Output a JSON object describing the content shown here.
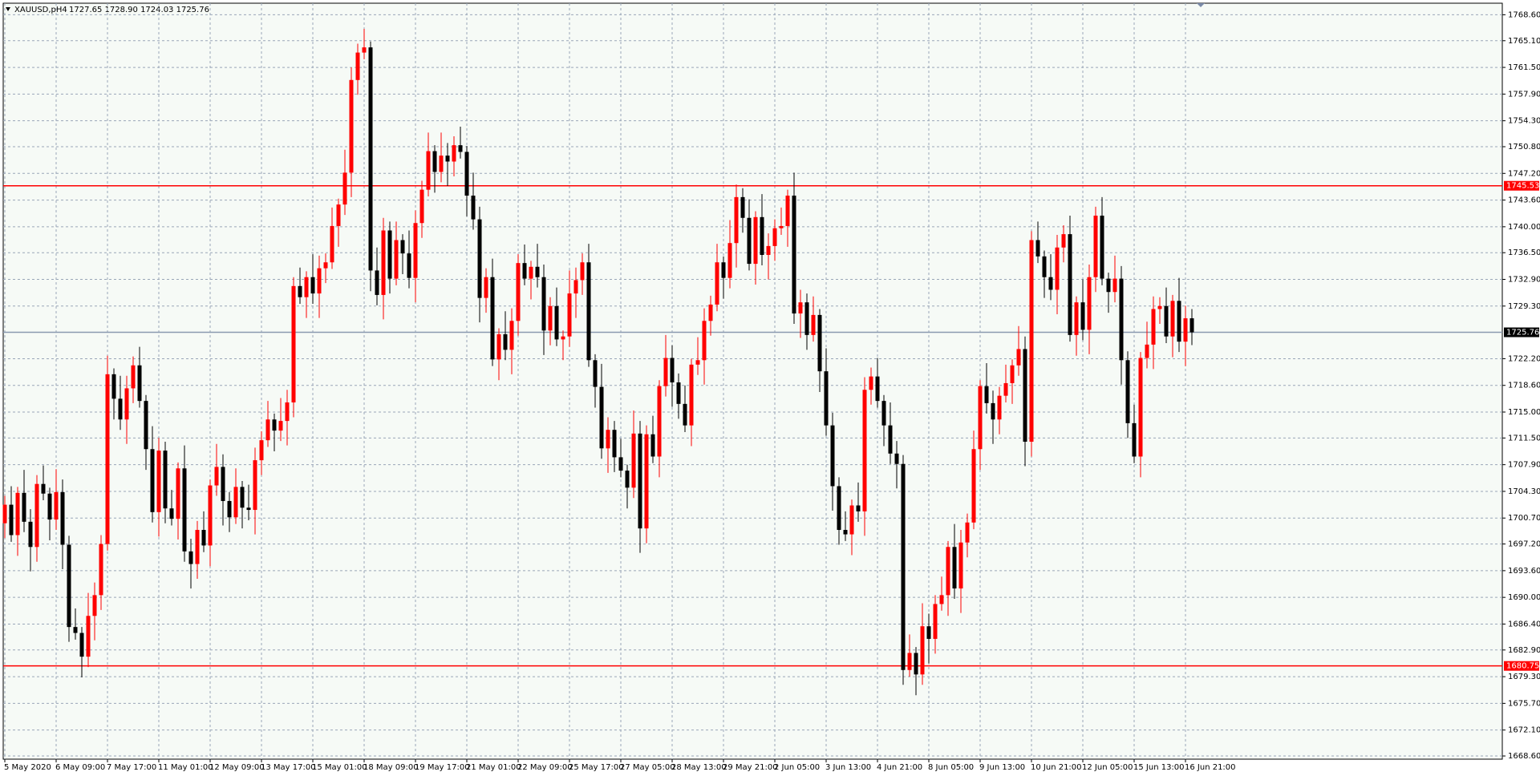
{
  "chart_data": {
    "type": "candlestick",
    "symbol": "XAUUSD,pH4",
    "header_quote": "1727.65 1728.90 1724.03 1725.76",
    "up_color": "#ff0000",
    "down_color": "#000000",
    "grid": true,
    "ylim": [
      1668.17,
      1770.16
    ],
    "yticks": [
      {
        "value": 1768.6,
        "label": "1768.60"
      },
      {
        "value": 1765.1,
        "label": "1765.10"
      },
      {
        "value": 1761.5,
        "label": "1761.50"
      },
      {
        "value": 1757.9,
        "label": "1757.90"
      },
      {
        "value": 1754.3,
        "label": "1754.30"
      },
      {
        "value": 1750.8,
        "label": "1750.80"
      },
      {
        "value": 1747.2,
        "label": "1747.20"
      },
      {
        "value": 1743.6,
        "label": "1743.60"
      },
      {
        "value": 1740.0,
        "label": "1740.00"
      },
      {
        "value": 1736.5,
        "label": "1736.50"
      },
      {
        "value": 1732.9,
        "label": "1732.90"
      },
      {
        "value": 1729.3,
        "label": "1729.30"
      },
      {
        "value": 1722.2,
        "label": "1722.20"
      },
      {
        "value": 1718.6,
        "label": "1718.60"
      },
      {
        "value": 1715.0,
        "label": "1715.00"
      },
      {
        "value": 1711.5,
        "label": "1711.50"
      },
      {
        "value": 1707.9,
        "label": "1707.90"
      },
      {
        "value": 1704.3,
        "label": "1704.30"
      },
      {
        "value": 1700.7,
        "label": "1700.70"
      },
      {
        "value": 1697.2,
        "label": "1697.20"
      },
      {
        "value": 1693.6,
        "label": "1693.60"
      },
      {
        "value": 1690.0,
        "label": "1690.00"
      },
      {
        "value": 1686.4,
        "label": "1686.40"
      },
      {
        "value": 1682.9,
        "label": "1682.90"
      },
      {
        "value": 1679.3,
        "label": "1679.30"
      },
      {
        "value": 1675.7,
        "label": "1675.70"
      },
      {
        "value": 1672.1,
        "label": "1672.10"
      },
      {
        "value": 1668.6,
        "label": "1668.60"
      }
    ],
    "hlines": [
      {
        "value": 1745.53,
        "color": "#ff0000",
        "label_color": "#ff0000"
      },
      {
        "value": 1680.75,
        "color": "#ff0000",
        "label_color": "#ff0000"
      },
      {
        "value": 1725.76,
        "color": "#8a9ab0",
        "label_color": "#000000"
      }
    ],
    "categories": [
      "5 May 2020",
      null,
      null,
      null,
      null,
      null,
      null,
      null,
      "6 May 09:00",
      null,
      null,
      null,
      null,
      null,
      null,
      null,
      "7 May 17:00",
      null,
      null,
      null,
      null,
      null,
      null,
      null,
      "11 May 01:00",
      null,
      null,
      null,
      null,
      null,
      null,
      null,
      "12 May 09:00",
      null,
      null,
      null,
      null,
      null,
      null,
      null,
      "13 May 17:00",
      null,
      null,
      null,
      null,
      null,
      null,
      null,
      "15 May 01:00",
      null,
      null,
      null,
      null,
      null,
      null,
      null,
      "18 May 09:00",
      null,
      null,
      null,
      null,
      null,
      null,
      null,
      "19 May 17:00",
      null,
      null,
      null,
      null,
      null,
      null,
      null,
      "21 May 01:00",
      null,
      null,
      null,
      null,
      null,
      null,
      null,
      "22 May 09:00",
      null,
      null,
      null,
      null,
      null,
      null,
      null,
      "25 May 17:00",
      null,
      null,
      null,
      null,
      null,
      null,
      null,
      "27 May 05:00",
      null,
      null,
      null,
      null,
      null,
      null,
      null,
      "28 May 13:00",
      null,
      null,
      null,
      null,
      null,
      null,
      null,
      "29 May 21:00",
      null,
      null,
      null,
      null,
      null,
      null,
      null,
      "2 Jun 05:00",
      null,
      null,
      null,
      null,
      null,
      null,
      null,
      "3 Jun 13:00",
      null,
      null,
      null,
      null,
      null,
      null,
      null,
      "4 Jun 21:00",
      null,
      null,
      null,
      null,
      null,
      null,
      null,
      "8 Jun 05:00",
      null,
      null,
      null,
      null,
      null,
      null,
      null,
      "9 Jun 13:00",
      null,
      null,
      null,
      null,
      null,
      null,
      null,
      "10 Jun 21:00",
      null,
      null,
      null,
      null,
      null,
      null,
      null,
      "12 Jun 05:00",
      null,
      null,
      null,
      null,
      null,
      null,
      null,
      "15 Jun 13:00",
      null,
      null,
      null,
      null,
      null,
      null,
      null,
      "16 Jun 21:00",
      null
    ],
    "open": [
      1700.0,
      1702.5,
      1698.4,
      1704.1,
      1700.2,
      1696.8,
      1705.3,
      1704.0,
      1700.5,
      1704.2,
      1697.1,
      1686.0,
      1685.2,
      1682.0,
      1687.5,
      1690.3,
      1697.2,
      1720.1,
      1716.8,
      1714.0,
      1718.2,
      1721.3,
      1716.5,
      1710.0,
      1701.5,
      1709.8,
      1702.0,
      1700.6,
      1707.4,
      1696.2,
      1694.5,
      1699.1,
      1697.0,
      1705.1,
      1707.6,
      1703.0,
      1700.8,
      1704.9,
      1702.1,
      1701.8,
      1708.5,
      1711.2,
      1714.0,
      1712.5,
      1713.8,
      1716.3,
      1732.0,
      1730.5,
      1733.2,
      1731.0,
      1734.4,
      1735.2,
      1740.1,
      1743.0,
      1747.3,
      1759.8,
      1763.5,
      1764.2,
      1734.1,
      1730.8,
      1739.5,
      1733.0,
      1738.2,
      1736.4,
      1733.1,
      1740.5,
      1745.0,
      1750.2,
      1747.4,
      1749.6,
      1748.8,
      1751.0,
      1750.1,
      1744.2,
      1741.0,
      1730.4,
      1733.2,
      1722.1,
      1725.5,
      1723.4,
      1727.3,
      1735.1,
      1733.0,
      1734.6,
      1733.2,
      1726.0,
      1729.3,
      1724.8,
      1725.2,
      1731.0,
      1732.8,
      1735.2,
      1722.0,
      1718.4,
      1710.1,
      1712.6,
      1708.9,
      1707.1,
      1704.8,
      1712.1,
      1699.3,
      1712.0,
      1709.0,
      1718.5,
      1722.3,
      1719.0,
      1716.1,
      1713.2,
      1721.4,
      1722.0,
      1727.3,
      1729.5,
      1735.2,
      1733.1,
      1737.8,
      1744.0,
      1741.2,
      1735.0,
      1741.3,
      1736.2,
      1737.4,
      1739.8,
      1740.1,
      1744.2,
      1728.3,
      1729.8,
      1725.4,
      1728.1,
      1720.5,
      1713.2,
      1705.0,
      1699.1,
      1698.5,
      1702.4,
      1701.6,
      1718.0,
      1719.8,
      1716.5,
      1713.2,
      1709.4,
      1708.0,
      1680.2,
      1682.5,
      1679.6,
      1686.1,
      1684.4,
      1689.1,
      1690.3,
      1696.8,
      1691.2,
      1697.4,
      1700.1,
      1710.0,
      1718.5,
      1716.2,
      1714.0,
      1717.2,
      1718.9,
      1721.3,
      1723.5,
      1711.0,
      1738.2,
      1736.0,
      1733.2,
      1731.5,
      1737.2,
      1739.0,
      1725.4,
      1729.8,
      1726.1,
      1733.2,
      1741.5,
      1733.0,
      1731.2,
      1733.0,
      1722.0,
      1713.5,
      1709.0,
      1722.3,
      1724.1,
      1728.9,
      1729.3,
      1725.2,
      1730.0,
      1724.5,
      1727.65
    ],
    "high": [
      1703.7,
      1705.0,
      1704.9,
      1707.2,
      1701.9,
      1706.5,
      1707.8,
      1704.8,
      1707.3,
      1705.9,
      1698.3,
      1688.5,
      1686.0,
      1690.6,
      1692.0,
      1698.4,
      1722.6,
      1720.9,
      1719.9,
      1719.9,
      1722.5,
      1723.8,
      1717.3,
      1713.1,
      1711.5,
      1711.0,
      1704.5,
      1708.2,
      1710.5,
      1697.9,
      1700.3,
      1701.6,
      1705.9,
      1710.7,
      1709.3,
      1704.2,
      1707.4,
      1705.7,
      1705.2,
      1710.2,
      1712.4,
      1716.5,
      1714.8,
      1716.9,
      1718.0,
      1733.2,
      1734.5,
      1734.0,
      1736.3,
      1736.1,
      1736.4,
      1742.6,
      1743.8,
      1750.4,
      1761.5,
      1764.7,
      1766.7,
      1765.0,
      1737.2,
      1741.2,
      1740.7,
      1740.7,
      1739.0,
      1739.5,
      1742.2,
      1746.2,
      1752.7,
      1751.0,
      1752.7,
      1751.3,
      1752.2,
      1753.5,
      1750.9,
      1747.3,
      1742.7,
      1734.4,
      1735.7,
      1726.3,
      1728.6,
      1729.0,
      1736.3,
      1737.6,
      1735.4,
      1737.7,
      1734.9,
      1730.5,
      1731.8,
      1726.0,
      1734.1,
      1734.5,
      1736.4,
      1737.7,
      1722.8,
      1721.5,
      1714.3,
      1713.8,
      1711.4,
      1707.9,
      1715.2,
      1713.8,
      1713.2,
      1714.5,
      1719.3,
      1725.4,
      1724.0,
      1720.2,
      1718.6,
      1722.2,
      1725.1,
      1729.0,
      1730.7,
      1737.7,
      1736.0,
      1740.9,
      1745.7,
      1745.2,
      1743.7,
      1742.1,
      1744.4,
      1739.1,
      1741.0,
      1742.6,
      1745.0,
      1747.3,
      1731.5,
      1731.0,
      1730.6,
      1728.9,
      1723.6,
      1714.9,
      1706.2,
      1701.6,
      1703.2,
      1705.5,
      1719.7,
      1721.0,
      1722.3,
      1717.3,
      1716.3,
      1711.1,
      1709.2,
      1685.0,
      1683.3,
      1689.2,
      1687.8,
      1690.3,
      1692.8,
      1697.6,
      1699.9,
      1699.1,
      1701.3,
      1712.5,
      1719.3,
      1721.6,
      1717.9,
      1718.4,
      1721.4,
      1722.1,
      1726.6,
      1725.2,
      1739.4,
      1740.7,
      1736.8,
      1736.3,
      1738.9,
      1740.2,
      1741.5,
      1730.6,
      1732.9,
      1734.9,
      1742.7,
      1744.0,
      1733.8,
      1736.1,
      1734.7,
      1723.2,
      1716.0,
      1723.1,
      1727.2,
      1730.6,
      1730.5,
      1731.8,
      1730.8,
      1733.1,
      1729.35,
      1728.9
    ],
    "low": [
      1698.0,
      1697.5,
      1695.6,
      1698.8,
      1693.5,
      1694.8,
      1703.1,
      1697.7,
      1699.1,
      1693.8,
      1684.0,
      1684.3,
      1679.2,
      1680.6,
      1684.2,
      1688.3,
      1696.3,
      1714.0,
      1712.6,
      1710.7,
      1716.2,
      1715.6,
      1707.2,
      1700.1,
      1698.2,
      1700.0,
      1699.7,
      1697.8,
      1694.8,
      1691.2,
      1692.5,
      1696.1,
      1694.2,
      1703.7,
      1699.7,
      1698.8,
      1699.9,
      1699.3,
      1700.4,
      1698.5,
      1706.5,
      1710.3,
      1709.7,
      1711.1,
      1710.5,
      1714.3,
      1729.6,
      1727.7,
      1729.6,
      1727.7,
      1732.4,
      1734.3,
      1737.3,
      1741.6,
      1744.0,
      1757.8,
      1762.6,
      1731.3,
      1729.4,
      1727.5,
      1731.0,
      1732.1,
      1733.6,
      1731.7,
      1729.8,
      1738.5,
      1744.1,
      1744.6,
      1746.0,
      1745.5,
      1746.8,
      1749.2,
      1741.4,
      1739.6,
      1727.1,
      1728.4,
      1721.2,
      1719.3,
      1722.0,
      1720.1,
      1725.3,
      1732.1,
      1730.2,
      1731.8,
      1722.7,
      1724.0,
      1723.9,
      1722.0,
      1723.8,
      1727.7,
      1730.8,
      1721.1,
      1715.6,
      1708.7,
      1706.8,
      1706.9,
      1706.2,
      1702.0,
      1703.4,
      1696.0,
      1697.3,
      1708.1,
      1706.2,
      1717.1,
      1715.7,
      1714.1,
      1712.3,
      1710.4,
      1720.0,
      1718.7,
      1725.3,
      1728.6,
      1730.3,
      1731.7,
      1734.5,
      1739.2,
      1734.1,
      1732.2,
      1734.8,
      1732.9,
      1735.4,
      1738.9,
      1737.3,
      1726.9,
      1725.0,
      1723.4,
      1724.5,
      1717.7,
      1711.8,
      1701.7,
      1697.1,
      1697.6,
      1695.7,
      1700.2,
      1698.3,
      1716.0,
      1715.6,
      1710.4,
      1708.0,
      1704.7,
      1678.2,
      1679.3,
      1676.8,
      1678.2,
      1681.1,
      1682.4,
      1688.2,
      1687.5,
      1689.8,
      1687.9,
      1695.4,
      1699.2,
      1707.2,
      1714.8,
      1710.7,
      1712.0,
      1716.3,
      1716.1,
      1719.9,
      1707.7,
      1709.0,
      1735.1,
      1730.4,
      1730.1,
      1728.2,
      1735.2,
      1724.5,
      1722.6,
      1724.7,
      1722.8,
      1731.2,
      1732.1,
      1728.4,
      1729.8,
      1718.7,
      1711.5,
      1708.1,
      1706.2,
      1720.9,
      1720.8,
      1726.9,
      1724.3,
      1722.4,
      1723.1,
      1721.2,
      1724.03
    ],
    "close": [
      1702.5,
      1698.4,
      1704.1,
      1700.2,
      1696.8,
      1705.3,
      1704.0,
      1700.5,
      1704.2,
      1697.1,
      1686.0,
      1685.2,
      1682.0,
      1687.5,
      1690.3,
      1697.2,
      1720.1,
      1716.8,
      1714.0,
      1718.2,
      1721.3,
      1716.5,
      1710.0,
      1701.5,
      1709.8,
      1702.0,
      1700.6,
      1707.4,
      1696.2,
      1694.5,
      1699.1,
      1697.0,
      1705.1,
      1707.6,
      1703.0,
      1700.8,
      1704.9,
      1702.1,
      1701.8,
      1708.5,
      1711.2,
      1714.0,
      1712.5,
      1713.8,
      1716.3,
      1732.0,
      1730.5,
      1733.2,
      1731.0,
      1734.4,
      1735.2,
      1740.1,
      1743.0,
      1747.3,
      1759.8,
      1763.5,
      1764.2,
      1734.1,
      1730.8,
      1739.5,
      1733.0,
      1738.2,
      1736.4,
      1733.1,
      1740.5,
      1745.0,
      1750.2,
      1747.4,
      1749.6,
      1748.8,
      1751.0,
      1750.1,
      1744.2,
      1741.0,
      1730.4,
      1733.2,
      1722.1,
      1725.5,
      1723.4,
      1727.3,
      1735.1,
      1733.0,
      1734.6,
      1733.2,
      1726.0,
      1729.3,
      1724.8,
      1725.2,
      1731.0,
      1732.8,
      1735.2,
      1722.0,
      1718.4,
      1710.1,
      1712.6,
      1708.9,
      1707.1,
      1704.8,
      1712.1,
      1699.3,
      1712.0,
      1709.0,
      1718.5,
      1722.3,
      1719.0,
      1716.1,
      1713.2,
      1721.4,
      1722.0,
      1727.3,
      1729.5,
      1735.2,
      1733.1,
      1737.8,
      1744.0,
      1741.2,
      1735.0,
      1741.3,
      1736.2,
      1737.4,
      1739.8,
      1740.1,
      1744.2,
      1728.3,
      1729.8,
      1725.4,
      1728.1,
      1720.5,
      1713.2,
      1705.0,
      1699.1,
      1698.5,
      1702.4,
      1701.6,
      1718.0,
      1719.8,
      1716.5,
      1713.2,
      1709.4,
      1708.0,
      1680.2,
      1682.5,
      1679.6,
      1686.1,
      1684.4,
      1689.1,
      1690.3,
      1696.8,
      1691.2,
      1697.4,
      1700.1,
      1710.0,
      1718.5,
      1716.2,
      1714.0,
      1717.2,
      1718.9,
      1721.3,
      1723.5,
      1711.0,
      1738.2,
      1736.0,
      1733.2,
      1731.5,
      1737.2,
      1739.0,
      1725.4,
      1729.8,
      1726.1,
      1733.2,
      1741.5,
      1733.0,
      1731.2,
      1733.0,
      1722.0,
      1713.5,
      1709.0,
      1722.3,
      1724.1,
      1728.9,
      1729.3,
      1725.2,
      1730.0,
      1724.5,
      1727.65,
      1725.76
    ]
  }
}
